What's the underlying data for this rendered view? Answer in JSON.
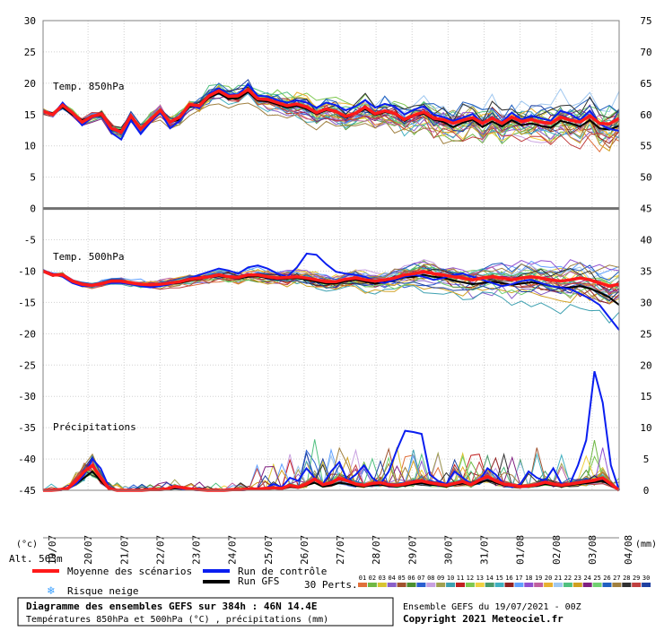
{
  "chart_data": {
    "type": "line",
    "left_axis": {
      "unit": "(°c)",
      "ticks": [
        "30",
        "25",
        "20",
        "15",
        "10",
        "5",
        "0",
        "-5",
        "-10",
        "-15",
        "-20",
        "-25",
        "-30",
        "-35",
        "-40",
        "-45"
      ],
      "min": -45,
      "max": 30
    },
    "right_axis": {
      "unit": "(mm)",
      "ticks": [
        "75",
        "70",
        "65",
        "60",
        "55",
        "50",
        "45",
        "40",
        "35",
        "30",
        "25",
        "20",
        "15",
        "10",
        "5",
        "0"
      ]
    },
    "x_dates": [
      "19/07",
      "20/07",
      "21/07",
      "22/07",
      "23/07",
      "24/07",
      "25/07",
      "26/07",
      "27/07",
      "28/07",
      "29/07",
      "30/07",
      "31/07",
      "01/08",
      "02/08",
      "03/08",
      "04/08"
    ],
    "panel_labels": {
      "t850": "Temp. 850hPa",
      "t500": "Temp. 500hPa",
      "precip": "Précipitations"
    },
    "alt_label": "Alt. 563m",
    "t850_mean": [
      15.5,
      15.0,
      16.5,
      15.3,
      13.8,
      14.7,
      15.1,
      12.8,
      12.2,
      14.8,
      12.7,
      14.2,
      15.7,
      13.8,
      14.6,
      16.6,
      16.4,
      18.0,
      18.8,
      17.9,
      18.0,
      19.0,
      17.5,
      17.4,
      16.9,
      16.4,
      16.7,
      16.2,
      15.3,
      15.9,
      15.5,
      14.7,
      15.2,
      16.2,
      15.1,
      15.6,
      15.2,
      14.2,
      14.9,
      15.4,
      14.4,
      14.2,
      13.6,
      14.1,
      14.5,
      13.6,
      14.4,
      13.6,
      14.6,
      13.9,
      14.2,
      13.8,
      13.6,
      14.6,
      14.1,
      13.8,
      14.8,
      13.6,
      13.5,
      14.4
    ],
    "t850_control": [
      15.7,
      14.9,
      16.9,
      15.2,
      13.3,
      14.5,
      15.0,
      12.1,
      11.0,
      14.1,
      11.9,
      13.8,
      15.4,
      12.8,
      14.0,
      16.5,
      16.0,
      18.3,
      19.2,
      18.2,
      18.2,
      19.8,
      18.0,
      17.9,
      17.3,
      16.9,
      17.3,
      16.9,
      16.1,
      16.9,
      16.5,
      15.7,
      16.3,
      17.3,
      16.1,
      16.7,
      16.3,
      15.0,
      15.8,
      16.3,
      15.0,
      14.6,
      14.0,
      14.5,
      15.1,
      13.6,
      14.5,
      13.8,
      15.3,
      14.2,
      14.8,
      14.4,
      14.0,
      15.6,
      15.1,
      14.1,
      15.6,
      13.5,
      12.7,
      12.4
    ],
    "t850_gfs": [
      15.5,
      15.2,
      16.2,
      15.0,
      14.1,
      14.7,
      14.8,
      12.6,
      12.5,
      14.4,
      12.9,
      14.0,
      15.4,
      13.8,
      14.2,
      16.3,
      16.2,
      17.7,
      18.4,
      17.5,
      17.6,
      18.6,
      17.2,
      17.1,
      16.6,
      16.1,
      16.4,
      15.9,
      15.1,
      15.7,
      15.4,
      14.5,
      15.1,
      15.9,
      14.9,
      15.4,
      15.1,
      14.0,
      14.8,
      15.1,
      14.2,
      13.8,
      13.0,
      13.7,
      14.2,
      13.0,
      13.9,
      13.1,
      14.1,
      13.3,
      13.6,
      13.2,
      12.9,
      14.0,
      13.6,
      13.1,
      14.1,
      12.8,
      12.6,
      13.2
    ],
    "t500_mean": [
      -10.0,
      -10.6,
      -10.6,
      -11.6,
      -12.1,
      -12.3,
      -12.0,
      -11.6,
      -11.6,
      -11.9,
      -12.1,
      -12.2,
      -12.1,
      -11.9,
      -11.7,
      -11.3,
      -11.1,
      -10.9,
      -10.6,
      -10.9,
      -11.0,
      -10.6,
      -10.6,
      -10.9,
      -11.1,
      -11.0,
      -10.9,
      -11.1,
      -11.4,
      -11.7,
      -11.7,
      -11.3,
      -11.1,
      -11.4,
      -11.6,
      -11.4,
      -11.1,
      -10.6,
      -10.4,
      -10.1,
      -10.4,
      -10.6,
      -10.9,
      -11.1,
      -11.4,
      -11.1,
      -10.9,
      -11.1,
      -11.4,
      -11.1,
      -10.9,
      -11.1,
      -11.4,
      -11.6,
      -11.4,
      -11.1,
      -11.4,
      -11.9,
      -12.4,
      -12.1
    ],
    "t500_control": [
      -9.9,
      -10.4,
      -10.9,
      -11.9,
      -12.4,
      -12.4,
      -12.1,
      -11.9,
      -11.9,
      -12.1,
      -12.4,
      -12.6,
      -12.4,
      -12.1,
      -11.6,
      -11.1,
      -10.6,
      -10.1,
      -9.6,
      -9.9,
      -10.4,
      -9.4,
      -9.1,
      -9.6,
      -10.4,
      -10.9,
      -9.4,
      -7.2,
      -7.4,
      -8.9,
      -10.1,
      -10.4,
      -10.6,
      -10.9,
      -11.6,
      -11.9,
      -11.4,
      -10.9,
      -10.6,
      -10.9,
      -11.4,
      -11.1,
      -10.6,
      -10.4,
      -10.9,
      -11.4,
      -11.9,
      -12.4,
      -12.1,
      -11.6,
      -11.4,
      -11.9,
      -12.4,
      -12.6,
      -12.9,
      -13.6,
      -14.4,
      -15.4,
      -17.4,
      -19.4
    ],
    "t500_gfs": [
      -10.1,
      -10.6,
      -10.8,
      -11.6,
      -12.1,
      -12.3,
      -12.1,
      -11.8,
      -11.7,
      -12.0,
      -12.2,
      -12.4,
      -12.3,
      -12.0,
      -11.9,
      -11.5,
      -11.3,
      -11.0,
      -10.8,
      -11.0,
      -11.2,
      -10.9,
      -10.8,
      -11.1,
      -11.3,
      -11.2,
      -11.1,
      -11.4,
      -11.7,
      -12.0,
      -12.0,
      -11.6,
      -11.4,
      -11.7,
      -12.0,
      -11.8,
      -11.5,
      -11.0,
      -10.9,
      -10.6,
      -10.9,
      -11.1,
      -11.5,
      -11.8,
      -12.1,
      -11.9,
      -11.7,
      -11.9,
      -12.2,
      -12.0,
      -11.8,
      -12.0,
      -12.4,
      -12.7,
      -12.6,
      -12.4,
      -12.8,
      -13.4,
      -14.2,
      -15.4
    ],
    "precip_mean": [
      0.0,
      0.0,
      0.1,
      0.3,
      1.5,
      3.0,
      4.0,
      2.0,
      0.3,
      0.0,
      0.0,
      0.0,
      0.0,
      0.1,
      0.1,
      0.2,
      0.6,
      0.4,
      0.2,
      0.1,
      0.0,
      0.0,
      0.0,
      0.1,
      0.1,
      0.2,
      0.2,
      0.3,
      0.4,
      0.3,
      0.8,
      0.5,
      1.0,
      1.8,
      0.9,
      1.2,
      1.9,
      1.5,
      1.0,
      0.8,
      1.1,
      1.2,
      0.9,
      0.8,
      1.0,
      1.3,
      1.5,
      1.2,
      1.0,
      0.8,
      1.1,
      1.4,
      0.9,
      1.6,
      2.2,
      1.5,
      1.0,
      0.8,
      0.6,
      0.7,
      0.9,
      1.3,
      1.0,
      0.8,
      1.0,
      1.2,
      1.4,
      1.6,
      2.0,
      1.0,
      0.0
    ],
    "precip_control": [
      0.0,
      0.0,
      0.0,
      0.2,
      1.0,
      2.5,
      5.0,
      3.5,
      0.5,
      0.0,
      0.0,
      0.0,
      0.0,
      0.0,
      0.0,
      0.3,
      0.5,
      0.2,
      0.1,
      0.0,
      0.0,
      0.0,
      0.0,
      0.0,
      0.0,
      0.1,
      0.2,
      0.3,
      1.0,
      0.5,
      2.0,
      1.5,
      3.5,
      2.0,
      1.0,
      3.0,
      4.5,
      1.5,
      2.5,
      4.0,
      2.0,
      1.0,
      3.0,
      6.5,
      9.5,
      9.3,
      9.0,
      2.5,
      1.5,
      1.0,
      3.0,
      2.0,
      1.0,
      1.5,
      3.5,
      2.5,
      1.0,
      0.5,
      1.0,
      3.0,
      2.0,
      1.5,
      3.5,
      1.0,
      1.0,
      4.0,
      8.0,
      19.0,
      14.0,
      4.0,
      0.0
    ],
    "precip_gfs": [
      0.0,
      0.0,
      0.0,
      0.2,
      1.0,
      2.0,
      3.0,
      1.5,
      0.2,
      0.0,
      0.0,
      0.0,
      0.0,
      0.0,
      0.0,
      0.1,
      0.3,
      0.2,
      0.1,
      0.0,
      0.0,
      0.0,
      0.0,
      0.0,
      0.0,
      0.1,
      0.1,
      0.2,
      0.3,
      0.2,
      0.6,
      0.4,
      0.8,
      1.2,
      0.6,
      0.8,
      1.2,
      1.0,
      0.7,
      0.6,
      0.8,
      0.9,
      0.7,
      0.6,
      0.8,
      1.0,
      1.1,
      0.9,
      0.8,
      0.6,
      0.9,
      1.1,
      0.8,
      1.2,
      1.6,
      1.2,
      0.8,
      0.6,
      0.5,
      0.6,
      0.7,
      1.0,
      0.8,
      0.6,
      0.8,
      1.0,
      1.1,
      1.3,
      1.5,
      0.8,
      0.0
    ],
    "perturbation_colors": [
      "#e0703a",
      "#6fb844",
      "#d8c432",
      "#8a5fc8",
      "#a0522d",
      "#4b8f2f",
      "#2b5fd0",
      "#c8a0e0",
      "#a0a050",
      "#3da0b0",
      "#c02020",
      "#7ec850",
      "#f0d040",
      "#4a9a6a",
      "#40b0c0",
      "#902020",
      "#60a0ff",
      "#9050d0",
      "#c060a0",
      "#e8b030",
      "#a0c8f0",
      "#50c080",
      "#d0a020",
      "#802080",
      "#70d070",
      "#2060c0",
      "#a08040",
      "#303030",
      "#c04040",
      "#2040a0"
    ]
  },
  "legend": {
    "mean": "Moyenne des scénarios",
    "control": "Run de contrôle",
    "gfs": "Run GFS",
    "snow": "Risque neige",
    "perts_label": "30 Perts.",
    "pert_numbers": [
      "01",
      "02",
      "03",
      "04",
      "05",
      "06",
      "07",
      "08",
      "09",
      "10",
      "11",
      "12",
      "13",
      "14",
      "15",
      "16",
      "17",
      "18",
      "19",
      "20",
      "21",
      "22",
      "23",
      "24",
      "25",
      "26",
      "27",
      "28",
      "29",
      "30"
    ],
    "colors": {
      "mean": "#ff1a1a",
      "control": "#0a1ef0",
      "gfs": "#000000",
      "snow": "#3aa0ff"
    }
  },
  "footer": {
    "title": "Diagramme des ensembles GEFS sur 384h : 46N 14.4E",
    "subtitle": "Températures 850hPa et 500hPa (°C) , précipitations (mm)",
    "run_info": "Ensemble GEFS du 19/07/2021 - 00Z",
    "copyright": "Copyright 2021 Meteociel.fr"
  }
}
